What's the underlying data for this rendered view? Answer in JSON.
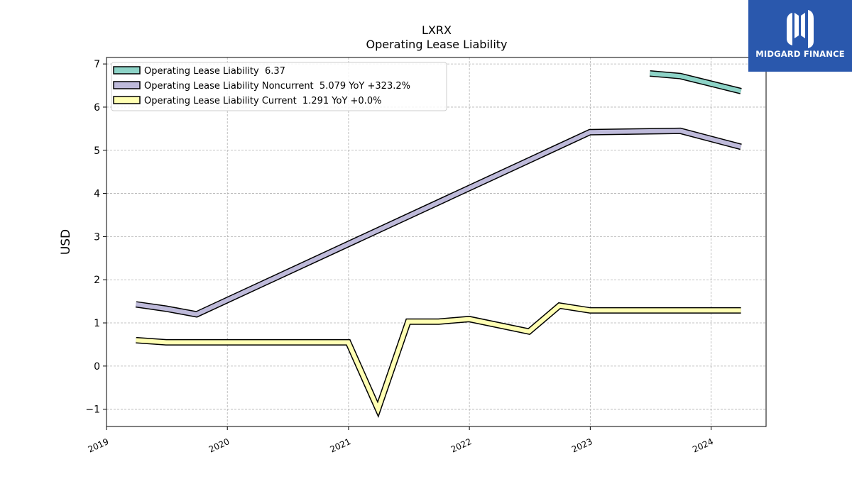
{
  "chart_data": {
    "type": "line",
    "title": "LXRX",
    "subtitle": "Operating Lease Liability",
    "ylabel": "USD",
    "xlabel": "",
    "xlim": [
      "2019-01-01",
      "2024-06-15"
    ],
    "ylim": [
      -1.4,
      7.15
    ],
    "x_ticks": [
      "2019",
      "2020",
      "2021",
      "2022",
      "2023",
      "2024"
    ],
    "y_ticks": [
      -1,
      0,
      1,
      2,
      3,
      4,
      5,
      6,
      7
    ],
    "grid": true,
    "legend_position": "top-left",
    "series": [
      {
        "name": "Operating Lease Liability",
        "legend_label": "Operating Lease Liability  6.37",
        "color": "#8dd3c7",
        "points": [
          [
            "2023-06-30",
            6.78
          ],
          [
            "2023-09-30",
            6.72
          ],
          [
            "2024-03-31",
            6.37
          ]
        ]
      },
      {
        "name": "Operating Lease Liability Noncurrent",
        "legend_label": "Operating Lease Liability Noncurrent  5.079 YoY +323.2%",
        "color": "#bebada",
        "points": [
          [
            "2019-03-31",
            1.43
          ],
          [
            "2019-06-30",
            1.33
          ],
          [
            "2019-09-30",
            1.2
          ],
          [
            "2022-12-31",
            5.42
          ],
          [
            "2023-09-30",
            5.45
          ],
          [
            "2024-03-31",
            5.08
          ]
        ]
      },
      {
        "name": "Operating Lease Liability Current",
        "legend_label": "Operating Lease Liability Current  1.291 YoY +0.0%",
        "color": "#ffffb3",
        "points": [
          [
            "2019-03-31",
            0.6
          ],
          [
            "2019-06-30",
            0.55
          ],
          [
            "2020-12-31",
            0.55
          ],
          [
            "2021-03-31",
            -1.0
          ],
          [
            "2021-06-30",
            1.03
          ],
          [
            "2021-09-30",
            1.03
          ],
          [
            "2021-12-31",
            1.09
          ],
          [
            "2022-06-30",
            0.8
          ],
          [
            "2022-09-30",
            1.4
          ],
          [
            "2022-12-31",
            1.29
          ],
          [
            "2024-03-31",
            1.29
          ]
        ]
      }
    ]
  },
  "branding": {
    "logo_text": "MIDGARD FINANCE",
    "logo_color": "#2a58ad"
  }
}
